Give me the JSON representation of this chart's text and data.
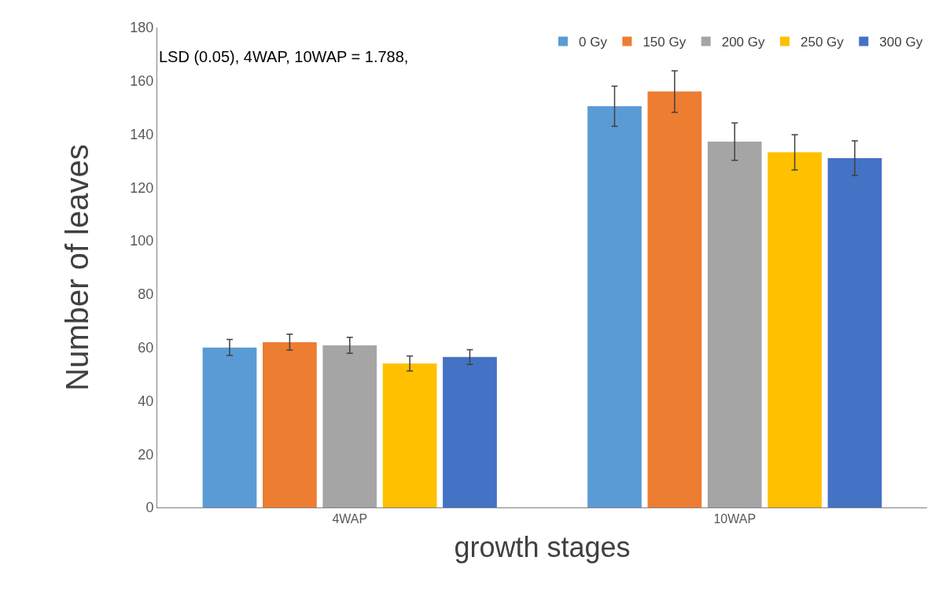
{
  "chart_data": {
    "type": "bar",
    "xlabel": "growth stages",
    "ylabel": "Number of leaves",
    "categories": [
      "4WAP",
      "10WAP"
    ],
    "series": [
      {
        "name": "0 Gy",
        "color": "#5b9bd5",
        "values": [
          60,
          150.5
        ],
        "errors": [
          3,
          7.5
        ]
      },
      {
        "name": "150 Gy",
        "color": "#ed7d31",
        "values": [
          62,
          156
        ],
        "errors": [
          3,
          7.8
        ]
      },
      {
        "name": "200 Gy",
        "color": "#a5a5a5",
        "values": [
          60.8,
          137.2
        ],
        "errors": [
          3,
          7
        ]
      },
      {
        "name": "250 Gy",
        "color": "#ffc000",
        "values": [
          54,
          133.2
        ],
        "errors": [
          2.8,
          6.6
        ]
      },
      {
        "name": "300 Gy",
        "color": "#4472c4",
        "values": [
          56.4,
          131
        ],
        "errors": [
          2.8,
          6.5
        ]
      }
    ],
    "ylim": [
      0,
      180
    ],
    "yticks": [
      0,
      20,
      40,
      60,
      80,
      100,
      120,
      140,
      160,
      180
    ],
    "annotations": [
      "LSD (0.05), 4WAP, 10WAP = 1.788,"
    ],
    "legend": "top right"
  }
}
